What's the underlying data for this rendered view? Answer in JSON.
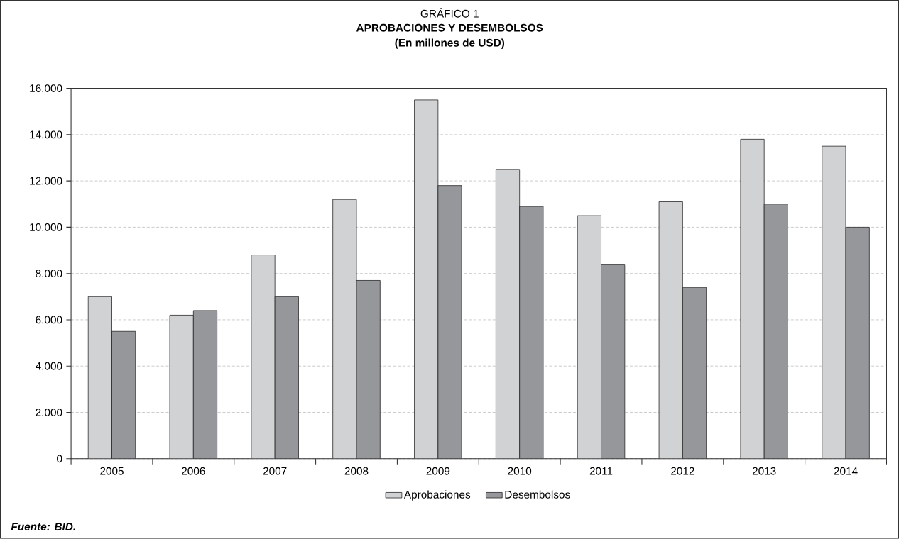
{
  "chart_data": {
    "type": "bar",
    "title": "APROBACIONES Y DESEMBOLSOS",
    "subtitle": "(En millones de USD)",
    "annotations": [
      "GRÁFICO 1",
      "Fuente: BID."
    ],
    "categories": [
      "2005",
      "2006",
      "2007",
      "2008",
      "2009",
      "2010",
      "2011",
      "2012",
      "2013",
      "2014"
    ],
    "series": [
      {
        "name": "Aprobaciones",
        "color": "#d1d2d4",
        "values": [
          7000,
          6200,
          8800,
          11200,
          15500,
          12500,
          10500,
          11100,
          13800,
          13500
        ]
      },
      {
        "name": "Desembolsos",
        "color": "#96979b",
        "values": [
          5500,
          6400,
          7000,
          7700,
          11800,
          10900,
          8400,
          7400,
          11000,
          10000
        ]
      }
    ],
    "ylim": [
      0,
      16000
    ],
    "yticks": [
      0,
      {
        "value": 2000,
        "label": "2.000"
      },
      {
        "value": 4000,
        "label": "4.000"
      },
      {
        "value": 6000,
        "label": "6.000"
      },
      {
        "value": 8000,
        "label": "8.000"
      },
      {
        "value": 10000,
        "label": "10.000"
      },
      {
        "value": 12000,
        "label": "12.000"
      },
      {
        "value": 14000,
        "label": "14.000"
      },
      {
        "value": 16000,
        "label": "16.000"
      }
    ],
    "grid": "y",
    "legend": "bottom"
  }
}
